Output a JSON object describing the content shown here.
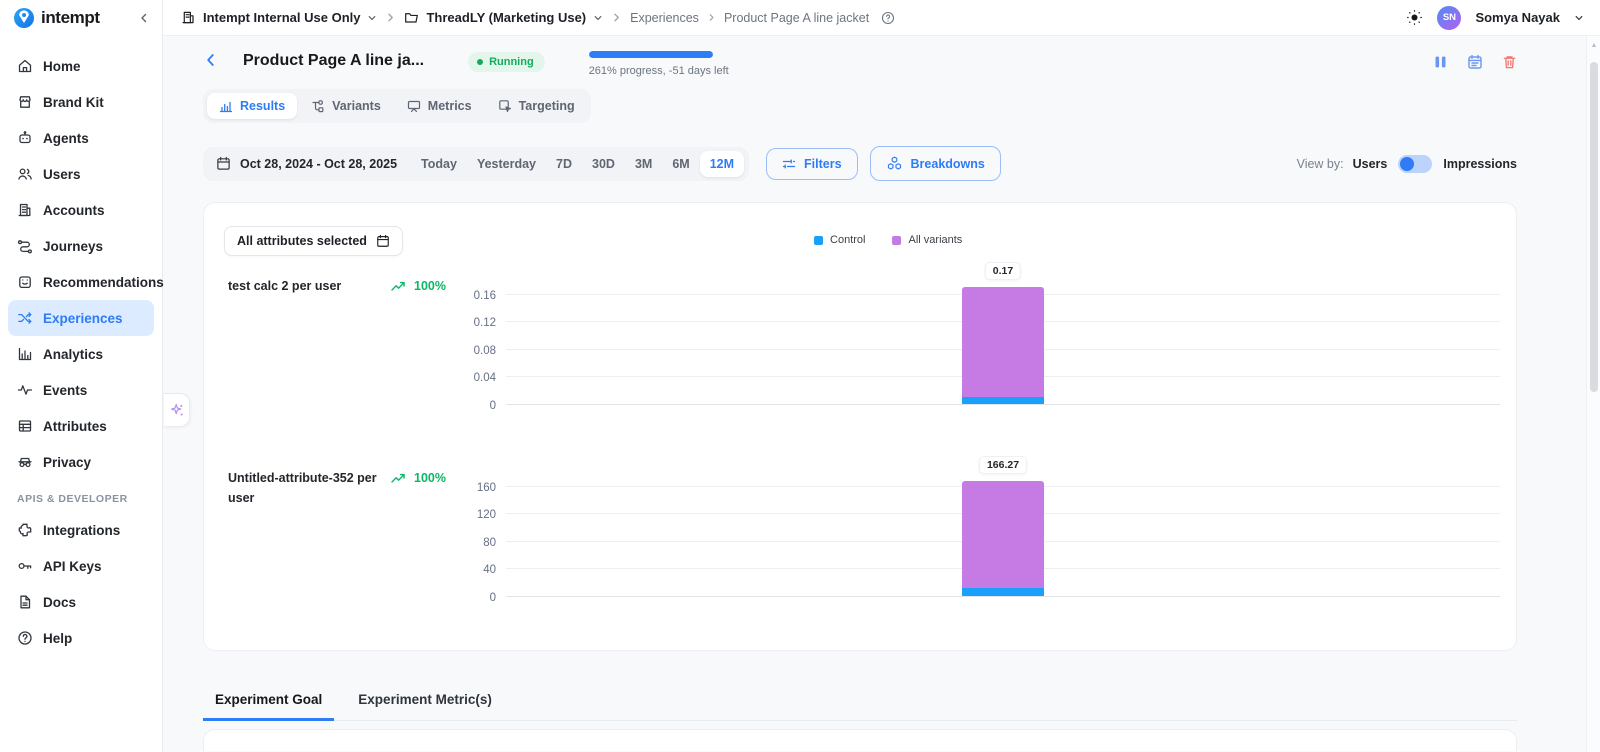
{
  "brand": {
    "name": "intempt"
  },
  "topbar": {
    "org": "Intempt Internal Use Only",
    "project": "ThreadLY (Marketing Use)",
    "breadcrumb_section": "Experiences",
    "breadcrumb_page": "Product Page A line jacket",
    "user_name": "Somya Nayak",
    "user_initials": "SN"
  },
  "sidebar": {
    "items": [
      {
        "label": "Home"
      },
      {
        "label": "Brand Kit"
      },
      {
        "label": "Agents"
      },
      {
        "label": "Users"
      },
      {
        "label": "Accounts"
      },
      {
        "label": "Journeys"
      },
      {
        "label": "Recommendations"
      },
      {
        "label": "Experiences"
      },
      {
        "label": "Analytics"
      },
      {
        "label": "Events"
      },
      {
        "label": "Attributes"
      },
      {
        "label": "Privacy"
      }
    ],
    "section_label": "APIS & DEVELOPER",
    "dev_items": [
      {
        "label": "Integrations"
      },
      {
        "label": "API Keys"
      },
      {
        "label": "Docs"
      },
      {
        "label": "Help"
      }
    ],
    "active_item": "Experiences"
  },
  "page_header": {
    "title": "Product Page A line ja...",
    "status_label": "Running",
    "progress_percent": 100,
    "progress_text": "261% progress, -51 days left"
  },
  "tabs": [
    {
      "label": "Results",
      "active": true
    },
    {
      "label": "Variants"
    },
    {
      "label": "Metrics"
    },
    {
      "label": "Targeting"
    }
  ],
  "date_bar": {
    "range": "Oct 28, 2024 - Oct 28, 2025",
    "presets": [
      "Today",
      "Yesterday",
      "7D",
      "30D",
      "3M",
      "6M",
      "12M"
    ],
    "active_preset": "12M"
  },
  "toolbar": {
    "filters_label": "Filters",
    "breakdowns_label": "Breakdowns",
    "view_by_label": "View by:",
    "view_by_left": "Users",
    "view_by_right": "Impressions"
  },
  "results_panel": {
    "attributes_dropdown_label": "All attributes selected",
    "legend": [
      {
        "label": "Control",
        "color": "#18a0fb"
      },
      {
        "label": "All variants",
        "color": "#c67ae3"
      }
    ]
  },
  "chart_data": [
    {
      "type": "bar",
      "title": "test calc 2 per user",
      "change_label": "100%",
      "change_direction": "up",
      "yticks": [
        0.16,
        0.12,
        0.08,
        0.04,
        0
      ],
      "ylim": [
        0,
        0.18
      ],
      "grid": true,
      "legend_position": "top",
      "series": [
        {
          "name": "Control",
          "value": 0.01,
          "color": "#18a0fb"
        },
        {
          "name": "All variants",
          "value": 0.16,
          "color": "#c67ae3"
        }
      ],
      "total_label": "0.17"
    },
    {
      "type": "bar",
      "title": "Untitled-attribute-352 per user",
      "change_label": "100%",
      "change_direction": "up",
      "yticks": [
        160,
        120,
        80,
        40,
        0
      ],
      "ylim": [
        0,
        180
      ],
      "grid": true,
      "legend_position": "top",
      "series": [
        {
          "name": "Control",
          "value": 12,
          "color": "#18a0fb"
        },
        {
          "name": "All variants",
          "value": 154.27,
          "color": "#c67ae3"
        }
      ],
      "total_label": "166.27"
    }
  ],
  "bottom_tabs": [
    {
      "label": "Experiment Goal",
      "active": true
    },
    {
      "label": "Experiment Metric(s)"
    }
  ],
  "colors": {
    "accent_blue": "#2e7cf6",
    "success_green": "#0cb765",
    "bar_purple": "#c67ae3",
    "bar_blue": "#18a0fb",
    "danger_red": "#f2756d",
    "active_nav_bg": "#dcebff"
  }
}
